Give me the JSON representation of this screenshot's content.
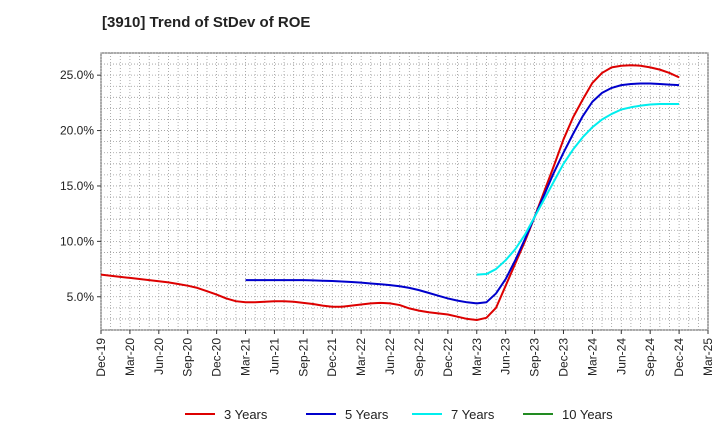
{
  "chart_data": {
    "type": "line",
    "title": "[3910]  Trend of StDev of ROE",
    "xlabel": "",
    "ylabel": "",
    "x_ticks": [
      "Dec-19",
      "Mar-20",
      "Jun-20",
      "Sep-20",
      "Dec-20",
      "Mar-21",
      "Jun-21",
      "Sep-21",
      "Dec-21",
      "Mar-22",
      "Jun-22",
      "Sep-22",
      "Dec-22",
      "Mar-23",
      "Jun-23",
      "Sep-23",
      "Dec-23",
      "Mar-24",
      "Jun-24",
      "Sep-24",
      "Dec-24",
      "Mar-25"
    ],
    "y_ticks": [
      "5.0%",
      "10.0%",
      "15.0%",
      "20.0%",
      "25.0%"
    ],
    "y_tick_values": [
      5,
      10,
      15,
      20,
      25
    ],
    "ylim": [
      2,
      27
    ],
    "grid": true,
    "legend_position": "bottom",
    "series": [
      {
        "name": "3 Years",
        "color": "#dd0000",
        "points": [
          [
            "Dec-19",
            7.0
          ],
          [
            "Jan-20",
            6.9
          ],
          [
            "Feb-20",
            6.8
          ],
          [
            "Mar-20",
            6.7
          ],
          [
            "Apr-20",
            6.6
          ],
          [
            "May-20",
            6.5
          ],
          [
            "Jun-20",
            6.4
          ],
          [
            "Jul-20",
            6.3
          ],
          [
            "Aug-20",
            6.15
          ],
          [
            "Sep-20",
            6.0
          ],
          [
            "Oct-20",
            5.8
          ],
          [
            "Nov-20",
            5.5
          ],
          [
            "Dec-20",
            5.2
          ],
          [
            "Jan-21",
            4.85
          ],
          [
            "Feb-21",
            4.6
          ],
          [
            "Mar-21",
            4.5
          ],
          [
            "Apr-21",
            4.5
          ],
          [
            "May-21",
            4.55
          ],
          [
            "Jun-21",
            4.6
          ],
          [
            "Jul-21",
            4.6
          ],
          [
            "Aug-21",
            4.55
          ],
          [
            "Sep-21",
            4.45
          ],
          [
            "Oct-21",
            4.35
          ],
          [
            "Nov-21",
            4.2
          ],
          [
            "Dec-21",
            4.1
          ],
          [
            "Jan-22",
            4.1
          ],
          [
            "Feb-22",
            4.2
          ],
          [
            "Mar-22",
            4.3
          ],
          [
            "Apr-22",
            4.4
          ],
          [
            "May-22",
            4.45
          ],
          [
            "Jun-22",
            4.4
          ],
          [
            "Jul-22",
            4.25
          ],
          [
            "Aug-22",
            3.95
          ],
          [
            "Sep-22",
            3.75
          ],
          [
            "Oct-22",
            3.6
          ],
          [
            "Nov-22",
            3.5
          ],
          [
            "Dec-22",
            3.4
          ],
          [
            "Jan-23",
            3.2
          ],
          [
            "Feb-23",
            3.0
          ],
          [
            "Mar-23",
            2.9
          ],
          [
            "Apr-23",
            3.1
          ],
          [
            "May-23",
            4.0
          ],
          [
            "Jun-23",
            6.0
          ],
          [
            "Jul-23",
            8.0
          ],
          [
            "Aug-23",
            10.0
          ],
          [
            "Sep-23",
            12.2
          ],
          [
            "Oct-23",
            14.5
          ],
          [
            "Nov-23",
            16.8
          ],
          [
            "Dec-23",
            19.2
          ],
          [
            "Jan-24",
            21.2
          ],
          [
            "Feb-24",
            22.8
          ],
          [
            "Mar-24",
            24.3
          ],
          [
            "Apr-24",
            25.2
          ],
          [
            "May-24",
            25.7
          ],
          [
            "Jun-24",
            25.85
          ],
          [
            "Jul-24",
            25.9
          ],
          [
            "Aug-24",
            25.85
          ],
          [
            "Sep-24",
            25.7
          ],
          [
            "Oct-24",
            25.5
          ],
          [
            "Nov-24",
            25.2
          ],
          [
            "Dec-24",
            24.8
          ]
        ]
      },
      {
        "name": "5 Years",
        "color": "#0000cc",
        "points": [
          [
            "Mar-21",
            6.5
          ],
          [
            "Apr-21",
            6.5
          ],
          [
            "May-21",
            6.5
          ],
          [
            "Jun-21",
            6.5
          ],
          [
            "Jul-21",
            6.5
          ],
          [
            "Aug-21",
            6.5
          ],
          [
            "Sep-21",
            6.5
          ],
          [
            "Oct-21",
            6.48
          ],
          [
            "Nov-21",
            6.45
          ],
          [
            "Dec-21",
            6.42
          ],
          [
            "Jan-22",
            6.38
          ],
          [
            "Feb-22",
            6.33
          ],
          [
            "Mar-22",
            6.28
          ],
          [
            "Apr-22",
            6.2
          ],
          [
            "May-22",
            6.13
          ],
          [
            "Jun-22",
            6.05
          ],
          [
            "Jul-22",
            5.95
          ],
          [
            "Aug-22",
            5.8
          ],
          [
            "Sep-22",
            5.6
          ],
          [
            "Oct-22",
            5.35
          ],
          [
            "Nov-22",
            5.1
          ],
          [
            "Dec-22",
            4.85
          ],
          [
            "Jan-23",
            4.65
          ],
          [
            "Feb-23",
            4.5
          ],
          [
            "Mar-23",
            4.4
          ],
          [
            "Apr-23",
            4.5
          ],
          [
            "May-23",
            5.3
          ],
          [
            "Jun-23",
            6.6
          ],
          [
            "Jul-23",
            8.3
          ],
          [
            "Aug-23",
            10.2
          ],
          [
            "Sep-23",
            12.2
          ],
          [
            "Oct-23",
            14.2
          ],
          [
            "Nov-23",
            16.2
          ],
          [
            "Dec-23",
            18.0
          ],
          [
            "Jan-24",
            19.7
          ],
          [
            "Feb-24",
            21.3
          ],
          [
            "Mar-24",
            22.6
          ],
          [
            "Apr-24",
            23.4
          ],
          [
            "May-24",
            23.85
          ],
          [
            "Jun-24",
            24.1
          ],
          [
            "Jul-24",
            24.2
          ],
          [
            "Aug-24",
            24.25
          ],
          [
            "Sep-24",
            24.25
          ],
          [
            "Oct-24",
            24.2
          ],
          [
            "Nov-24",
            24.15
          ],
          [
            "Dec-24",
            24.1
          ]
        ]
      },
      {
        "name": "7 Years",
        "color": "#00eeee",
        "points": [
          [
            "Mar-23",
            7.0
          ],
          [
            "Apr-23",
            7.05
          ],
          [
            "May-23",
            7.5
          ],
          [
            "Jun-23",
            8.3
          ],
          [
            "Jul-23",
            9.3
          ],
          [
            "Aug-23",
            10.6
          ],
          [
            "Sep-23",
            12.2
          ],
          [
            "Oct-23",
            13.8
          ],
          [
            "Nov-23",
            15.4
          ],
          [
            "Dec-23",
            17.0
          ],
          [
            "Jan-24",
            18.3
          ],
          [
            "Feb-24",
            19.4
          ],
          [
            "Mar-24",
            20.3
          ],
          [
            "Apr-24",
            21.0
          ],
          [
            "May-24",
            21.5
          ],
          [
            "Jun-24",
            21.9
          ],
          [
            "Jul-24",
            22.1
          ],
          [
            "Aug-24",
            22.25
          ],
          [
            "Sep-24",
            22.35
          ],
          [
            "Oct-24",
            22.4
          ],
          [
            "Nov-24",
            22.4
          ],
          [
            "Dec-24",
            22.4
          ]
        ]
      },
      {
        "name": "10 Years",
        "color": "#228b22",
        "points": []
      }
    ]
  }
}
